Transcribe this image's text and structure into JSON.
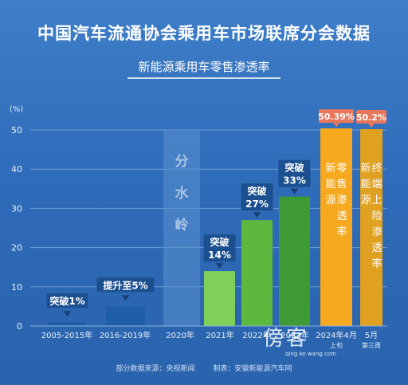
{
  "title": "中国汽车流通协会乘用车市场联席分会数据",
  "subtitle": "新能源乘用车零售渗透率",
  "source": {
    "left": "部分数据来源：央视新闻",
    "right": "制表：安徽新能源汽车网"
  },
  "watermark": {
    "main": "傍客",
    "sub": "qing ke wang.com"
  },
  "chart_data": {
    "type": "bar",
    "title": "中国汽车流通协会乘用车市场联席分会数据",
    "subtitle": "新能源乘用车零售渗透率",
    "y_unit": "(%)",
    "ylim": [
      0,
      50
    ],
    "yticks": [
      0,
      10,
      20,
      30,
      40,
      50
    ],
    "grid": true,
    "categories": [
      "2005-2015年",
      "2016-2019年",
      "2020年",
      "2021年",
      "2022年",
      "2023年",
      "2024年4月上旬",
      "5月第三周"
    ],
    "values": [
      1,
      5,
      null,
      14,
      27,
      33,
      50.39,
      50.2
    ],
    "colors": {
      "early": "#1f5fa8",
      "light_green": "#7fd05a",
      "green": "#5cb83e",
      "dark_green": "#3e9a33",
      "orange": "#f6a81e",
      "dark_orange": "#e0a020",
      "callout_blue": "#1b4f8f",
      "callout_red": "#e8765a",
      "divider": "#7fa6d6"
    },
    "callouts": [
      {
        "index": 0,
        "text": "突破1%"
      },
      {
        "index": 1,
        "text": "提升至5%"
      },
      {
        "index": 3,
        "line1": "突破",
        "line2": "14%"
      },
      {
        "index": 4,
        "line1": "突破",
        "line2": "27%"
      },
      {
        "index": 5,
        "line1": "突破",
        "line2": "33%"
      },
      {
        "index": 6,
        "text": "50.39%"
      },
      {
        "index": 7,
        "text": "50.2%"
      }
    ],
    "divider_label": "分水岭",
    "vertical_labels": {
      "6": "新能源零售渗透率",
      "7": "新能源终端上险渗透率"
    },
    "x_labels": {
      "0": [
        "2005-2015年"
      ],
      "1": [
        "2016-2019年"
      ],
      "2": [
        "2020年"
      ],
      "3": [
        "2021年"
      ],
      "4": [
        "2022年"
      ],
      "5": [
        "2023年"
      ],
      "6": [
        "2024年4月",
        "上旬"
      ],
      "7": [
        "5月",
        "第三周"
      ]
    }
  }
}
